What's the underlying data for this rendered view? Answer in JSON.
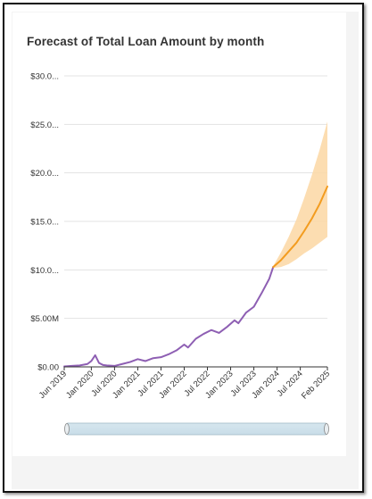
{
  "chart_data": {
    "type": "line",
    "title": "Forecast of Total Loan Amount by month",
    "xlabel": "",
    "ylabel": "",
    "y_tick_labels": [
      "$0.00",
      "$5.00M",
      "$10.0...",
      "$15.0...",
      "$20.0...",
      "$25.0...",
      "$30.0..."
    ],
    "y_tick_values": [
      0,
      5,
      10,
      15,
      20,
      25,
      30
    ],
    "ylim": [
      0,
      30
    ],
    "y_unit": "millions",
    "x_tick_labels": [
      "Jun 2019",
      "Jan 2020",
      "Jul 2020",
      "Jan 2021",
      "Jul 2021",
      "Jan 2022",
      "Jul 2022",
      "Jan 2023",
      "Jul 2023",
      "Jan 2024",
      "Jul 2024",
      "Feb 2025"
    ],
    "x_tick_dates": [
      "2019-06",
      "2020-01",
      "2020-07",
      "2021-01",
      "2021-07",
      "2022-01",
      "2022-07",
      "2023-01",
      "2023-07",
      "2024-01",
      "2024-07",
      "2025-02"
    ],
    "xlim": [
      "2019-06",
      "2025-02"
    ],
    "grid": "horizontal",
    "colors": {
      "actual": "#8e5fb3",
      "forecast": "#f39c1f",
      "band": "#fbd7a3"
    },
    "series": [
      {
        "kind": "actual",
        "x": [
          "2019-06",
          "2019-08",
          "2019-10",
          "2019-12",
          "2020-01",
          "2020-02",
          "2020-03",
          "2020-04",
          "2020-05",
          "2020-07",
          "2020-09",
          "2020-11",
          "2021-01",
          "2021-03",
          "2021-05",
          "2021-07",
          "2021-09",
          "2021-11",
          "2022-01",
          "2022-02",
          "2022-04",
          "2022-06",
          "2022-08",
          "2022-10",
          "2022-12",
          "2023-02",
          "2023-03",
          "2023-05",
          "2023-07",
          "2023-09",
          "2023-11",
          "2023-12"
        ],
        "values": [
          0.05,
          0.1,
          0.15,
          0.3,
          0.6,
          1.2,
          0.4,
          0.2,
          0.15,
          0.1,
          0.3,
          0.5,
          0.8,
          0.6,
          0.9,
          1.0,
          1.3,
          1.7,
          2.3,
          2.0,
          2.9,
          3.4,
          3.8,
          3.5,
          4.1,
          4.8,
          4.5,
          5.6,
          6.2,
          7.6,
          9.1,
          10.3
        ]
      },
      {
        "kind": "forecast",
        "x": [
          "2023-12",
          "2024-02",
          "2024-04",
          "2024-06",
          "2024-08",
          "2024-10",
          "2024-12",
          "2025-02"
        ],
        "values": [
          10.3,
          11.0,
          11.9,
          12.8,
          14.0,
          15.3,
          16.8,
          18.6
        ],
        "lower": [
          10.2,
          10.3,
          10.6,
          11.1,
          11.7,
          12.2,
          12.8,
          13.4
        ],
        "upper": [
          10.4,
          11.8,
          13.4,
          15.2,
          17.4,
          19.8,
          22.4,
          25.3
        ]
      }
    ]
  }
}
